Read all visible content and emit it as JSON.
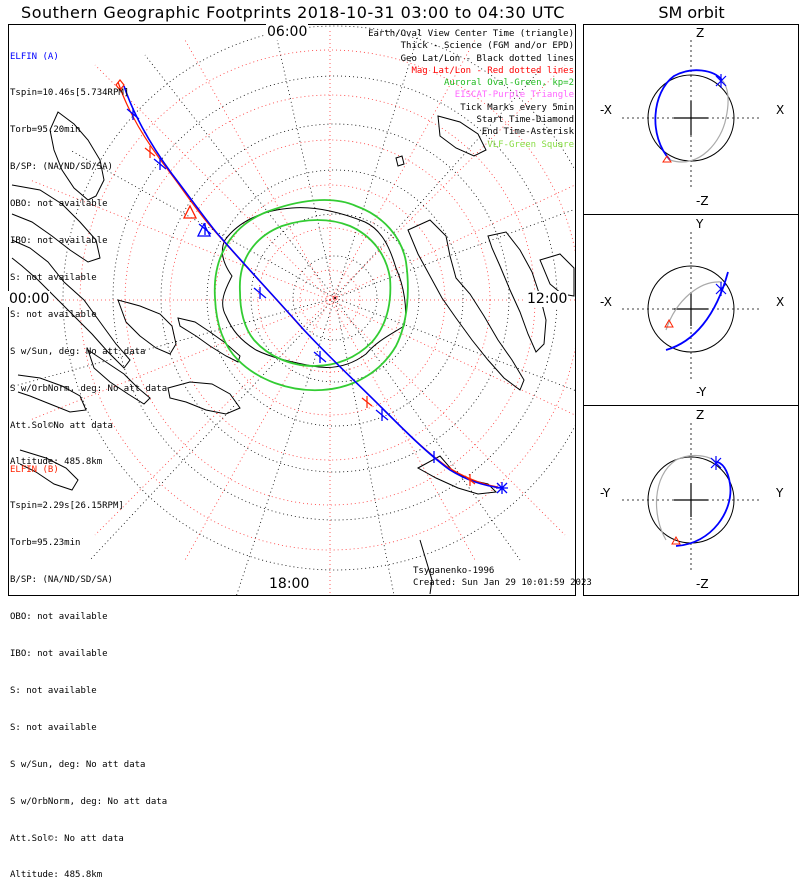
{
  "title": "Southern Geographic Footprints 2018-10-31 03:00 to 04:30 UTC",
  "sm_title": "SM orbit",
  "elfin_a": {
    "name": "ELFIN (A)",
    "color": "#0000ff",
    "lines": [
      "Tspin=10.46s[5.734RPM]",
      "Torb=95.20min",
      "B/SP: (NA/ND/SD/SA)",
      "OBO: not available",
      "IBO: not available",
      "S: not available",
      "S: not available",
      "S w/Sun, deg: No att data",
      "S w/OrbNorm, deg: No att data",
      "Att.Sol©No att data",
      "Altitude: 485.8km"
    ]
  },
  "elfin_b": {
    "name": "ELFIN (B)",
    "color": "#ff2200",
    "lines": [
      "Tspin=2.29s[26.15RPM]",
      "Torb=95.23min",
      "B/SP: (NA/ND/SD/SA)",
      "OBO: not available",
      "IBO: not available",
      "S: not available",
      "S: not available",
      "S w/Sun, deg: No att data",
      "S w/OrbNorm, deg: No att data",
      "Att.Sol©: No att data",
      "Altitude: 485.8km"
    ]
  },
  "legend": [
    {
      "text": "Earth/Oval View Center Time (triangle)",
      "color": "#000000"
    },
    {
      "text": "Thick - Science (FGM and/or EPD)",
      "color": "#000000"
    },
    {
      "text": "Geo Lat/Lon - Black dotted lines",
      "color": "#000000"
    },
    {
      "text": "Mag Lat/Lon - Red dotted lines",
      "color": "#ff0000"
    },
    {
      "text": "Auroral Oval-Green, kp=2",
      "color": "#22bb22"
    },
    {
      "text": "EISCAT-Purple Triangle",
      "color": "#ff66ff"
    },
    {
      "text": "Tick Marks every 5min",
      "color": "#000000"
    },
    {
      "text": "Start Time-Diamond",
      "color": "#000000"
    },
    {
      "text": "End Time-Asterisk",
      "color": "#000000"
    },
    {
      "text": "VLF-Green Square",
      "color": "#88dd44"
    }
  ],
  "mlt_labels": {
    "top": "06:00",
    "left": "00:00",
    "right": "12:00",
    "bottom": "18:00"
  },
  "footer": {
    "model": "Tsyganenko-1996",
    "created": "Created: Sun Jan 29 10:01:59 2023"
  },
  "sm_panels": [
    {
      "top": "Z",
      "bottom": "-Z",
      "left": "-X",
      "right": "X"
    },
    {
      "top": "Y",
      "bottom": "-Y",
      "left": "-X",
      "right": "X"
    },
    {
      "top": "Z",
      "bottom": "-Z",
      "left": "-Y",
      "right": "Y"
    }
  ],
  "colors": {
    "trace_a": "#0000ff",
    "trace_b": "#ff2200",
    "oval": "#33cc33",
    "mag_grid": "#ff3333",
    "geo_grid": "#000000",
    "orbit_back": "#aaaaaa"
  }
}
